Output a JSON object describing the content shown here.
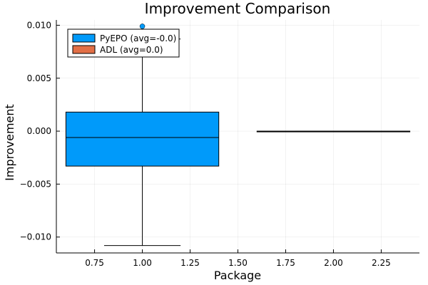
{
  "chart_data": {
    "type": "box",
    "title": "Improvement Comparison",
    "xlabel": "Package",
    "ylabel": "Improvement",
    "xlim": [
      0.55,
      2.45
    ],
    "ylim": [
      -0.0115,
      0.0105
    ],
    "xticks": [
      "0.75",
      "1.00",
      "1.25",
      "1.50",
      "1.75",
      "2.00",
      "2.25"
    ],
    "yticks": [
      "−0.010",
      "−0.005",
      "0.000",
      "0.005",
      "0.010"
    ],
    "grid": true,
    "legend_position": "top-left",
    "series": [
      {
        "name": "PyEPO (avg=-0.0)",
        "color": "#009AFA",
        "x": 1.0,
        "box_width": 0.8,
        "whisker_cap_width": 0.4,
        "q1": -0.0033,
        "median": -0.0006,
        "q3": 0.0018,
        "whisker_low": -0.0108,
        "whisker_high": 0.0087,
        "outliers": [
          0.0099
        ]
      },
      {
        "name": "ADL (avg=0.0)",
        "color": "#E26F46",
        "x": 2.0,
        "box_width": 0.8,
        "whisker_cap_width": 0.4,
        "q1": 0.0,
        "median": 0.0,
        "q3": 0.0,
        "whisker_low": 0.0,
        "whisker_high": 0.0,
        "outliers": []
      }
    ]
  }
}
